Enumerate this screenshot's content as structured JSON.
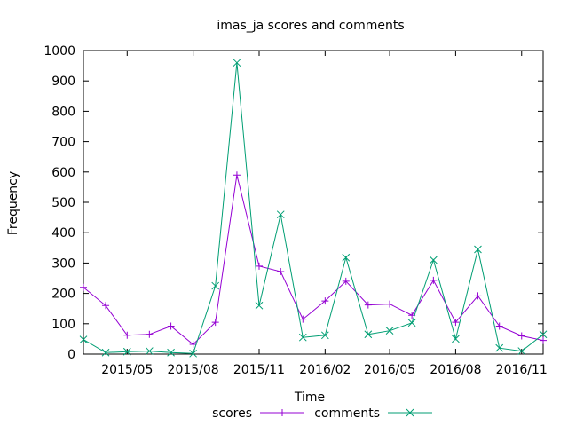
{
  "chart_data": {
    "type": "line",
    "title": "imas_ja scores and comments",
    "xlabel": "Time",
    "ylabel": "Frequency",
    "ylim": [
      0,
      1000
    ],
    "yticks": [
      0,
      100,
      200,
      300,
      400,
      500,
      600,
      700,
      800,
      900,
      1000
    ],
    "xlim": [
      "2015-03-01",
      "2016-12-01"
    ],
    "xticks": [
      {
        "date": "2015-05-01",
        "label": "2015/05"
      },
      {
        "date": "2015-08-01",
        "label": "2015/08"
      },
      {
        "date": "2015-11-01",
        "label": "2015/11"
      },
      {
        "date": "2016-02-01",
        "label": "2016/02"
      },
      {
        "date": "2016-05-01",
        "label": "2016/05"
      },
      {
        "date": "2016-08-01",
        "label": "2016/08"
      },
      {
        "date": "2016-11-01",
        "label": "2016/11"
      }
    ],
    "x": [
      "2015-03-01",
      "2015-04-01",
      "2015-05-01",
      "2015-06-01",
      "2015-07-01",
      "2015-08-01",
      "2015-09-01",
      "2015-10-01",
      "2015-11-01",
      "2015-12-01",
      "2016-01-01",
      "2016-02-01",
      "2016-03-01",
      "2016-04-01",
      "2016-05-01",
      "2016-06-01",
      "2016-07-01",
      "2016-08-01",
      "2016-09-01",
      "2016-10-01",
      "2016-11-01",
      "2016-12-01"
    ],
    "series": [
      {
        "name": "scores",
        "color": "#9400d3",
        "marker": "plus",
        "values": [
          220,
          160,
          62,
          65,
          92,
          32,
          105,
          590,
          290,
          272,
          115,
          175,
          240,
          162,
          165,
          128,
          243,
          105,
          192,
          92,
          60,
          45
        ]
      },
      {
        "name": "comments",
        "color": "#009e73",
        "marker": "cross",
        "values": [
          48,
          5,
          8,
          10,
          5,
          2,
          225,
          960,
          160,
          460,
          55,
          62,
          318,
          65,
          77,
          103,
          310,
          50,
          345,
          20,
          10,
          65
        ]
      }
    ],
    "grid": false,
    "legend": "bottom"
  }
}
